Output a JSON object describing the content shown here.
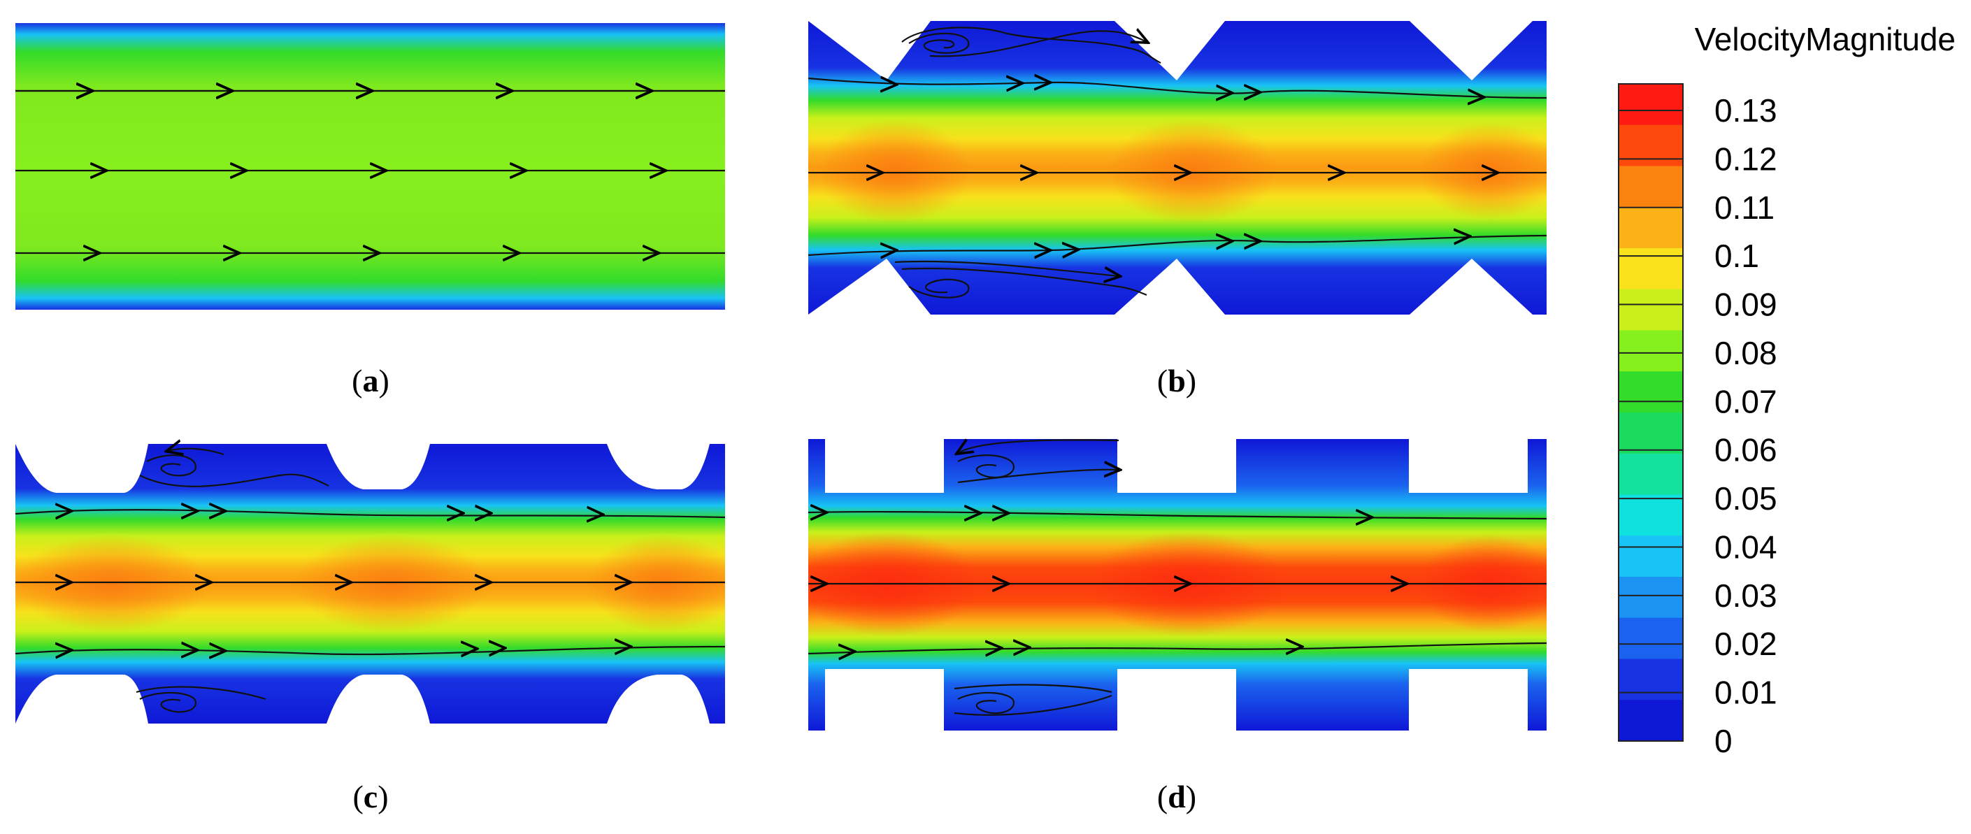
{
  "legend": {
    "title": "VelocityMagnitude",
    "ticks": [
      "0.13",
      "0.12",
      "0.11",
      "0.1",
      "0.09",
      "0.08",
      "0.07",
      "0.06",
      "0.05",
      "0.04",
      "0.03",
      "0.02",
      "0.01",
      "0"
    ],
    "colors": [
      "#ff1a12",
      "#fd4a0c",
      "#fb8410",
      "#fbb216",
      "#f7e21c",
      "#c9f01a",
      "#86ef1e",
      "#33db2a",
      "#1bdb5e",
      "#13e29e",
      "#0fe1df",
      "#18c3f5",
      "#1b93f3",
      "#1b63ee",
      "#1733e2",
      "#0f18d7"
    ]
  },
  "panels": [
    {
      "id": "a",
      "caption_open": "(",
      "caption_letter": "a",
      "caption_close": ")"
    },
    {
      "id": "b",
      "caption_open": "(",
      "caption_letter": "b",
      "caption_close": ")"
    },
    {
      "id": "c",
      "caption_open": "(",
      "caption_letter": "c",
      "caption_close": ")"
    },
    {
      "id": "d",
      "caption_open": "(",
      "caption_letter": "d",
      "caption_close": ")"
    }
  ]
}
